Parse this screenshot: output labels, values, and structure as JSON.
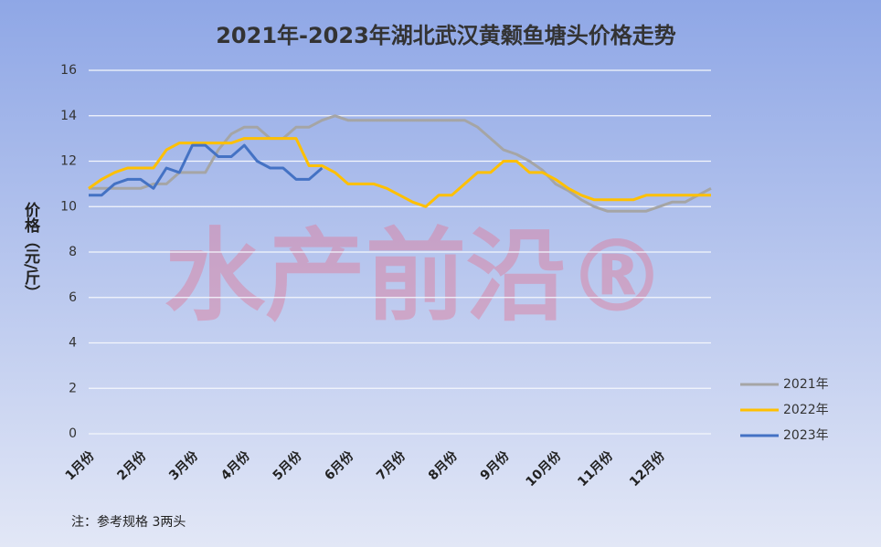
{
  "chart_data": {
    "type": "line",
    "title": "2021年-2023年湖北武汉黄颡鱼塘头价格走势",
    "y_label": "价格（元/斤）",
    "note": "注：参考规格  3两头",
    "watermark": "水产前沿®",
    "categories": [
      "1月份",
      null,
      null,
      null,
      "2月份",
      null,
      null,
      null,
      "3月份",
      null,
      null,
      null,
      "4月份",
      null,
      null,
      null,
      "5月份",
      null,
      null,
      null,
      "6月份",
      null,
      null,
      null,
      "7月份",
      null,
      null,
      null,
      "8月份",
      null,
      null,
      null,
      "9月份",
      null,
      null,
      null,
      "10月份",
      null,
      null,
      null,
      "11月份",
      null,
      null,
      null,
      "12月份",
      null,
      null,
      null,
      null
    ],
    "series": [
      {
        "name": "2021年",
        "color": "#a5a5a5",
        "values": [
          10.8,
          10.8,
          10.8,
          10.8,
          10.8,
          11.0,
          11.0,
          11.5,
          11.5,
          11.5,
          12.5,
          13.2,
          13.5,
          13.5,
          13.0,
          13.0,
          13.5,
          13.5,
          13.8,
          14.0,
          13.8,
          13.8,
          13.8,
          13.8,
          13.8,
          13.8,
          13.8,
          13.8,
          13.8,
          13.8,
          13.5,
          13.0,
          12.5,
          12.3,
          12.0,
          11.6,
          11.0,
          10.7,
          10.3,
          10.0,
          9.8,
          9.8,
          9.8,
          9.8,
          10.0,
          10.2,
          10.2,
          10.5,
          10.8
        ]
      },
      {
        "name": "2022年",
        "color": "#ffc000",
        "values": [
          10.8,
          11.2,
          11.5,
          11.7,
          11.7,
          11.7,
          12.5,
          12.8,
          12.8,
          12.8,
          12.8,
          12.8,
          13.0,
          13.0,
          13.0,
          13.0,
          13.0,
          11.8,
          11.8,
          11.5,
          11.0,
          11.0,
          11.0,
          10.8,
          10.5,
          10.2,
          10.0,
          10.5,
          10.5,
          11.0,
          11.5,
          11.5,
          12.0,
          12.0,
          11.5,
          11.5,
          11.2,
          10.8,
          10.5,
          10.3,
          10.3,
          10.3,
          10.3,
          10.5,
          10.5,
          10.5,
          10.5,
          10.5,
          10.5
        ]
      },
      {
        "name": "2023年",
        "color": "#4472c4",
        "values": [
          10.5,
          10.5,
          11.0,
          11.2,
          11.2,
          10.8,
          11.7,
          11.5,
          12.7,
          12.7,
          12.2,
          12.2,
          12.7,
          12.0,
          11.7,
          11.7,
          11.2,
          11.2,
          11.7,
          null,
          null,
          null,
          null,
          null,
          null,
          null,
          null,
          null,
          null,
          null,
          null,
          null,
          null,
          null,
          null,
          null,
          null,
          null,
          null,
          null,
          null,
          null,
          null,
          null,
          null,
          null,
          null,
          null,
          null
        ]
      }
    ],
    "ylim": [
      0,
      16
    ],
    "yticks": [
      0,
      2,
      4,
      6,
      8,
      10,
      12,
      14,
      16
    ],
    "grid": true,
    "legend": "right"
  }
}
